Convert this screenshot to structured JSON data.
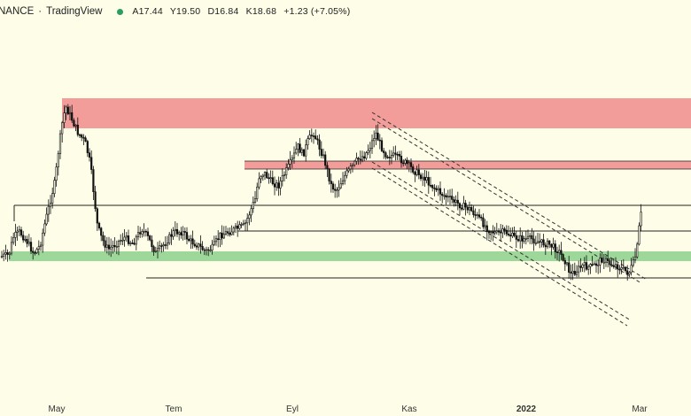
{
  "header": {
    "symbol": "NANCE",
    "source": "TradingView",
    "separator": "·",
    "ohlc": [
      {
        "label": "A17.44"
      },
      {
        "label": "Y19.50"
      },
      {
        "label": "D16.84"
      },
      {
        "label": "K18.68"
      },
      {
        "label": "+1.23 (+7.05%)"
      }
    ]
  },
  "x_axis": [
    {
      "label": "May",
      "bold": false
    },
    {
      "label": "Tem",
      "bold": false
    },
    {
      "label": "Eyl",
      "bold": false
    },
    {
      "label": "Kas",
      "bold": false
    },
    {
      "label": "2022",
      "bold": true
    },
    {
      "label": "Mar",
      "bold": false
    }
  ],
  "colors": {
    "background": "#fdfde8",
    "resistance_zone": "#f08c8c",
    "support_zone": "#8cd08c",
    "candles": "#111111",
    "live_dot": "#2a9d62"
  }
}
